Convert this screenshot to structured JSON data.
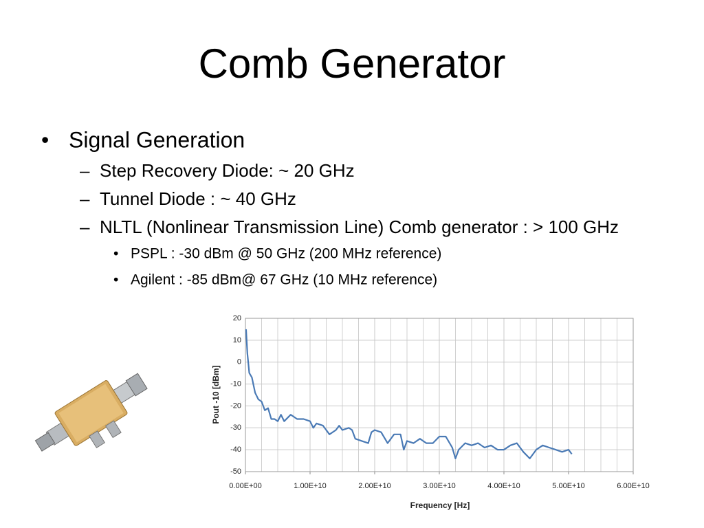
{
  "title": "Comb Generator",
  "bullets": [
    {
      "text": "Signal Generation",
      "children": [
        {
          "text": "Step Recovery Diode: ~ 20 GHz"
        },
        {
          "text": "Tunnel Diode : ~ 40 GHz"
        },
        {
          "text": "NLTL (Nonlinear Transmission Line) Comb generator : > 100 GHz",
          "children": [
            {
              "text": "PSPL : -30 dBm @ 50 GHz (200 MHz reference)"
            },
            {
              "text": "Agilent :  -85 dBm@ 67 GHz (10 MHz reference)"
            }
          ]
        }
      ]
    }
  ],
  "chart_data": {
    "type": "line",
    "x_label": "Frequency [Hz]",
    "y_label": "Pout -10 [dBm]",
    "x": [
      100000000.0,
      300000000.0,
      600000000.0,
      1000000000.0,
      1500000000.0,
      2000000000.0,
      2500000000.0,
      3000000000.0,
      3500000000.0,
      4000000000.0,
      4500000000.0,
      5000000000.0,
      5500000000.0,
      6000000000.0,
      7000000000.0,
      8000000000.0,
      9000000000.0,
      10000000000.0,
      10500000000.0,
      11000000000.0,
      12000000000.0,
      13000000000.0,
      14000000000.0,
      14500000000.0,
      15000000000.0,
      16000000000.0,
      16500000000.0,
      17000000000.0,
      18000000000.0,
      19000000000.0,
      19500000000.0,
      20000000000.0,
      21000000000.0,
      22000000000.0,
      23000000000.0,
      24000000000.0,
      24500000000.0,
      25000000000.0,
      26000000000.0,
      27000000000.0,
      28000000000.0,
      29000000000.0,
      30000000000.0,
      31000000000.0,
      32000000000.0,
      32500000000.0,
      33000000000.0,
      34000000000.0,
      35000000000.0,
      36000000000.0,
      37000000000.0,
      38000000000.0,
      39000000000.0,
      40000000000.0,
      41000000000.0,
      42000000000.0,
      43000000000.0,
      44000000000.0,
      45000000000.0,
      46000000000.0,
      47000000000.0,
      48000000000.0,
      49000000000.0,
      50000000000.0,
      50500000000.0
    ],
    "series": [
      {
        "name": "Pout",
        "color": "#4a7ab5",
        "values": [
          15,
          4,
          -5,
          -7,
          -14,
          -17,
          -18,
          -22,
          -21,
          -26,
          -26,
          -27,
          -24,
          -27,
          -24,
          -26,
          -26,
          -27,
          -30,
          -28,
          -29,
          -33,
          -31,
          -29,
          -31,
          -30,
          -31,
          -35,
          -36,
          -37,
          -32,
          -31,
          -32,
          -37,
          -33,
          -33,
          -40,
          -36,
          -37,
          -35,
          -37,
          -37,
          -34,
          -34,
          -39,
          -44,
          -40,
          -37,
          -38,
          -37,
          -39,
          -38,
          -40,
          -40,
          -38,
          -37,
          -41,
          -44,
          -40,
          -38,
          -39,
          -40,
          -41,
          -40,
          -42
        ]
      }
    ],
    "xlim": [
      0,
      60000000000.0
    ],
    "ylim": [
      -50,
      20
    ],
    "xticks": [
      {
        "value": 0,
        "label": "0.00E+00"
      },
      {
        "value": 10000000000.0,
        "label": "1.00E+10"
      },
      {
        "value": 20000000000.0,
        "label": "2.00E+10"
      },
      {
        "value": 30000000000.0,
        "label": "3.00E+10"
      },
      {
        "value": 40000000000.0,
        "label": "4.00E+10"
      },
      {
        "value": 50000000000.0,
        "label": "5.00E+10"
      },
      {
        "value": 60000000000.0,
        "label": "6.00E+10"
      }
    ],
    "yticks": [
      -50,
      -40,
      -30,
      -20,
      -10,
      0,
      10,
      20
    ],
    "grid": true
  }
}
